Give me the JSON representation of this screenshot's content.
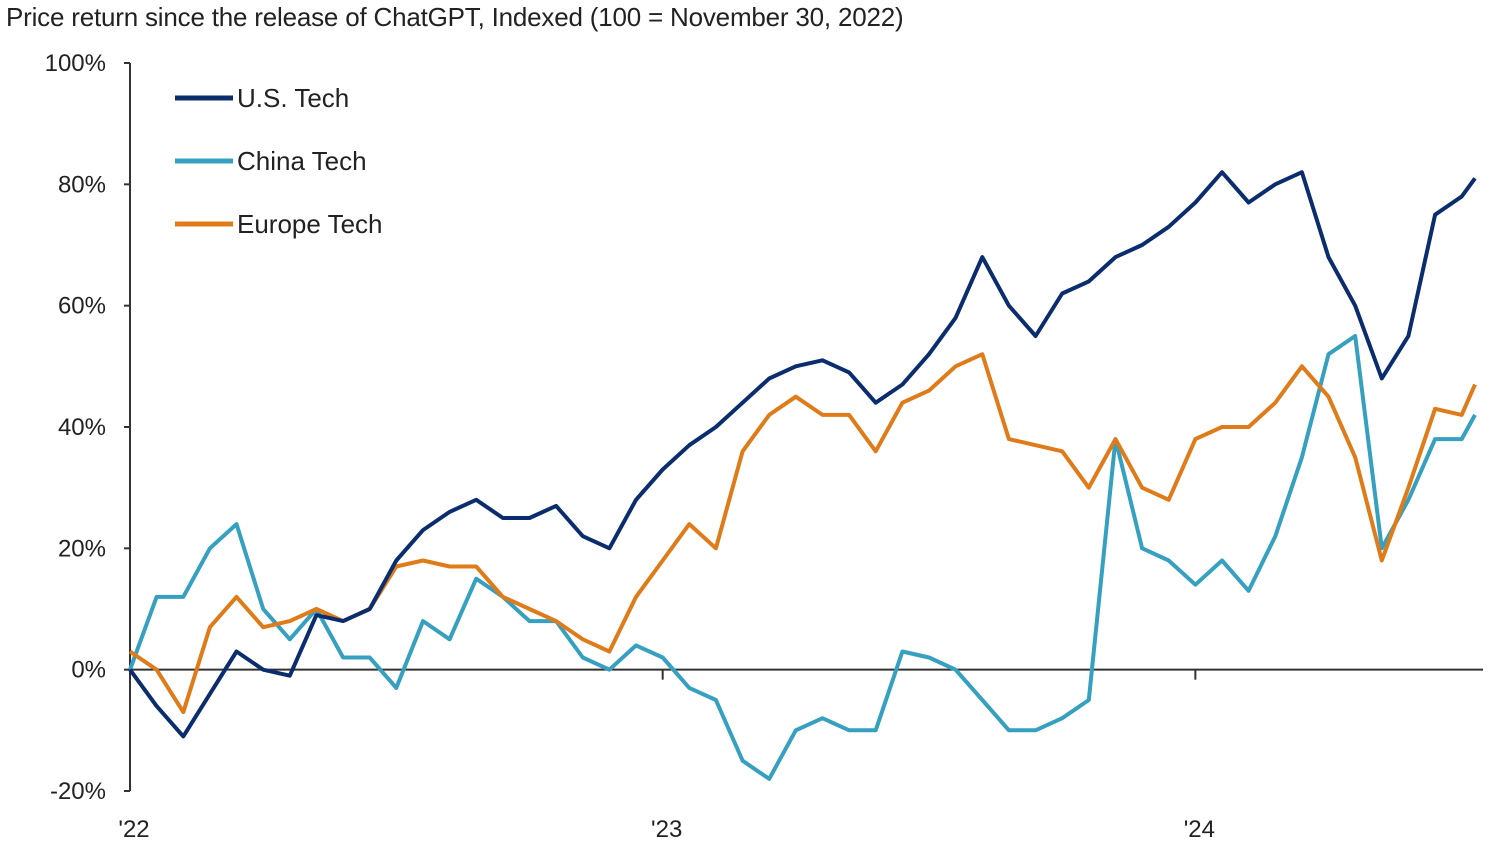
{
  "chart_data": {
    "type": "line",
    "subtitle": "Price return since the release of ChatGPT, Indexed (100 = November 30, 2022)",
    "xlabel": "",
    "ylabel": "",
    "ylim": [
      -20,
      100
    ],
    "yticks": [
      -20,
      0,
      20,
      40,
      60,
      80,
      100
    ],
    "ytick_labels": [
      "-20%",
      "0%",
      "20%",
      "40%",
      "60%",
      "80%",
      "100%"
    ],
    "xlim": [
      2022.0,
      2024.54
    ],
    "xticks": [
      2022,
      2023,
      2024
    ],
    "xtick_labels": [
      "'22",
      "'23",
      "'24"
    ],
    "grid": false,
    "legend_placement": "top-left",
    "x": [
      2022.0,
      2022.05,
      2022.1,
      2022.15,
      2022.2,
      2022.25,
      2022.3,
      2022.35,
      2022.4,
      2022.45,
      2022.5,
      2022.55,
      2022.6,
      2022.65,
      2022.7,
      2022.75,
      2022.8,
      2022.85,
      2022.9,
      2022.95,
      2023.0,
      2023.05,
      2023.1,
      2023.15,
      2023.2,
      2023.25,
      2023.3,
      2023.35,
      2023.4,
      2023.45,
      2023.5,
      2023.55,
      2023.6,
      2023.65,
      2023.7,
      2023.75,
      2023.8,
      2023.85,
      2023.9,
      2023.95,
      2024.0,
      2024.05,
      2024.1,
      2024.15,
      2024.2,
      2024.25,
      2024.3,
      2024.35,
      2024.4,
      2024.45,
      2024.5,
      2024.525
    ],
    "series": [
      {
        "name": "U.S. Tech",
        "color": "#0b2d6e",
        "values": [
          0,
          -6,
          -11,
          -4,
          3,
          0,
          -1,
          9,
          8,
          10,
          18,
          23,
          26,
          28,
          25,
          25,
          27,
          22,
          20,
          28,
          33,
          37,
          40,
          44,
          48,
          50,
          51,
          49,
          44,
          47,
          52,
          58,
          68,
          60,
          55,
          62,
          64,
          68,
          70,
          73,
          77,
          82,
          77,
          80,
          82,
          68,
          60,
          48,
          55,
          75,
          78,
          81
        ]
      },
      {
        "name": "China Tech",
        "color": "#35a0bf",
        "values": [
          0,
          12,
          12,
          20,
          24,
          10,
          5,
          10,
          2,
          2,
          -3,
          8,
          5,
          15,
          12,
          8,
          8,
          2,
          0,
          4,
          2,
          -3,
          -5,
          -15,
          -18,
          -10,
          -8,
          -10,
          -10,
          3,
          2,
          0,
          -5,
          -10,
          -10,
          -8,
          -5,
          38,
          20,
          18,
          14,
          18,
          13,
          22,
          35,
          52,
          55,
          20,
          28,
          38,
          38,
          42
        ]
      },
      {
        "name": "Europe Tech",
        "color": "#e07b1a",
        "values": [
          3,
          0,
          -7,
          7,
          12,
          7,
          8,
          10,
          8,
          10,
          17,
          18,
          17,
          17,
          12,
          10,
          8,
          5,
          3,
          12,
          18,
          24,
          20,
          36,
          42,
          45,
          42,
          42,
          36,
          44,
          46,
          50,
          52,
          38,
          37,
          36,
          30,
          38,
          30,
          28,
          38,
          40,
          40,
          44,
          50,
          45,
          35,
          18,
          30,
          43,
          42,
          47
        ]
      }
    ]
  }
}
